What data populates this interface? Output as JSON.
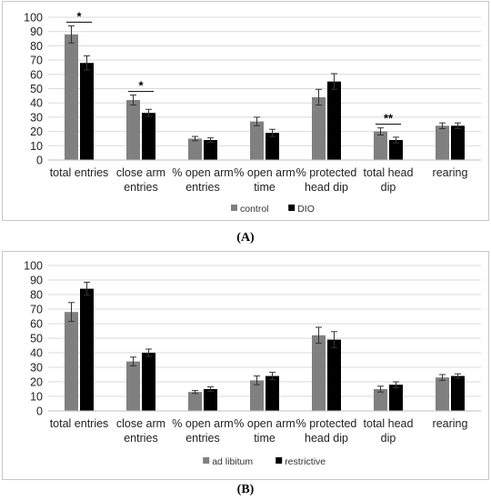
{
  "chart_data": [
    {
      "panel": "A",
      "type": "bar",
      "categories": [
        [
          "total entries"
        ],
        [
          "close arm",
          "entries"
        ],
        [
          "% open arm",
          "entries"
        ],
        [
          "% open arm",
          "time"
        ],
        [
          "% protected",
          "head dip"
        ],
        [
          "total head",
          "dip"
        ],
        [
          "rearing"
        ]
      ],
      "series": [
        {
          "name": "control",
          "color": "#808080",
          "values": [
            88,
            42,
            15,
            27,
            44,
            20,
            24
          ],
          "errors": [
            6,
            3.5,
            1.5,
            3,
            5.5,
            2.5,
            2
          ]
        },
        {
          "name": "DIO",
          "color": "#000000",
          "values": [
            68,
            33,
            14,
            19,
            55,
            14,
            24
          ],
          "errors": [
            5,
            2.5,
            1.5,
            2.5,
            5.5,
            2,
            2
          ]
        }
      ],
      "ylim": [
        0,
        100
      ],
      "yticks": [
        0,
        10,
        20,
        30,
        40,
        50,
        60,
        70,
        80,
        90,
        100
      ],
      "grid": true,
      "legend": "bottom",
      "significance": [
        {
          "category_index": 0,
          "label": "*"
        },
        {
          "category_index": 1,
          "label": "*"
        },
        {
          "category_index": 5,
          "label": "**"
        }
      ]
    },
    {
      "panel": "B",
      "type": "bar",
      "categories": [
        [
          "total entries"
        ],
        [
          "close arm",
          "entries"
        ],
        [
          "% open arm",
          "entries"
        ],
        [
          "% open arm",
          "time"
        ],
        [
          "% protected",
          "head dip"
        ],
        [
          "total head",
          "dip"
        ],
        [
          "rearing"
        ]
      ],
      "series": [
        {
          "name": "ad libitum",
          "color": "#808080",
          "values": [
            68,
            34,
            13,
            21,
            52,
            15,
            23
          ],
          "errors": [
            6.5,
            3,
            1,
            3,
            5.5,
            2,
            2
          ]
        },
        {
          "name": "restrictive",
          "color": "#000000",
          "values": [
            84,
            40,
            15,
            24,
            49,
            18,
            24
          ],
          "errors": [
            4.5,
            2.5,
            1.5,
            2.5,
            5.5,
            2,
            1.5
          ]
        }
      ],
      "ylim": [
        0,
        100
      ],
      "yticks": [
        0,
        10,
        20,
        30,
        40,
        50,
        60,
        70,
        80,
        90,
        100
      ],
      "grid": true,
      "legend": "bottom",
      "significance": []
    }
  ],
  "panel_labels": {
    "a": "(A)",
    "b": "(B)"
  }
}
